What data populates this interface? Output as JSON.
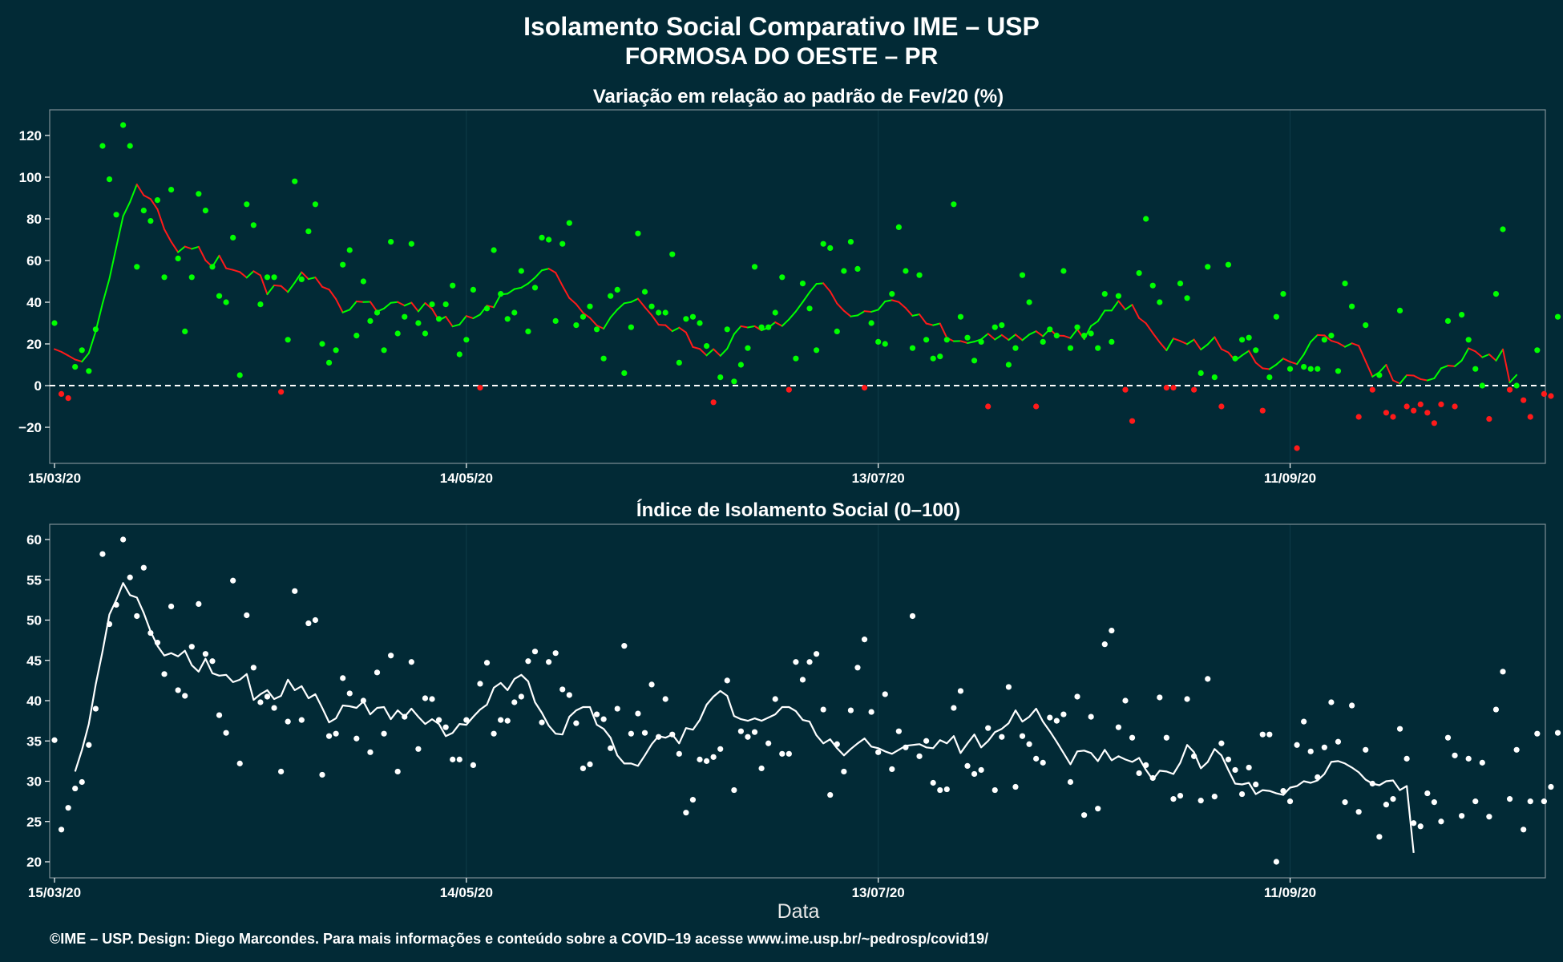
{
  "title_line1": "Isolamento Social Comparativo IME – USP",
  "title_line2": "FORMOSA DO OESTE – PR",
  "caption": "©IME – USP. Design: Diego Marcondes. Para mais informações e conteúdo sobre a COVID–19 acesse www.ime.usp.br/~pedrosp/covid19/",
  "colors": {
    "background": "#022a36",
    "positive": "#00ff00",
    "negative": "#ff1a1a",
    "index": "#ffffff",
    "grid": "#0f3d4a",
    "frame": "#7d8f95"
  },
  "chart_data": [
    {
      "type": "scatter",
      "title": "Variação em relação ao padrão de Fev/20 (%)",
      "xlabel": "",
      "ylabel": "",
      "x_start": "15/03/20",
      "x_end": "20/10/20",
      "xticks": [
        "15/03/20",
        "14/05/20",
        "13/07/20",
        "11/09/20"
      ],
      "yticks": [
        -20,
        0,
        20,
        40,
        60,
        80,
        100,
        120
      ],
      "ylim": [
        -35,
        133
      ],
      "reference_line": 0,
      "points": [
        30,
        -4,
        -6,
        9,
        17,
        7,
        27,
        115,
        99,
        82,
        125,
        115,
        57,
        84,
        79,
        89,
        52,
        94,
        61,
        26,
        52,
        92,
        84,
        57,
        43,
        40,
        71,
        5,
        87,
        77,
        39,
        52,
        52,
        -3,
        22,
        98,
        51,
        74,
        87,
        20,
        11,
        17,
        58,
        65,
        24,
        50,
        31,
        35,
        17,
        69,
        25,
        33,
        68,
        30,
        25,
        39,
        32,
        39,
        48,
        15,
        22,
        46,
        -1,
        37,
        65,
        44,
        32,
        35,
        55,
        26,
        47,
        71,
        70,
        31,
        68,
        78,
        29,
        33,
        38,
        27,
        13,
        43,
        46,
        6,
        28,
        73,
        45,
        38,
        35,
        35,
        63,
        11,
        32,
        33,
        30,
        19,
        -8,
        4,
        27,
        2,
        10,
        18,
        57,
        28,
        28,
        35,
        52,
        -2,
        13,
        49,
        37,
        17,
        68,
        66,
        26,
        55,
        69,
        56,
        -1,
        30,
        21,
        20,
        44,
        76,
        55,
        18,
        53,
        22,
        13,
        14,
        22,
        87,
        33,
        23,
        12,
        21,
        -10,
        28,
        29,
        10,
        18,
        53,
        40,
        -10,
        21,
        27,
        24,
        55,
        18,
        28,
        24,
        25,
        18,
        44,
        21,
        43,
        -2,
        -17,
        54,
        80,
        48,
        40,
        -1,
        -1,
        49,
        42,
        -2,
        6,
        57,
        4,
        -10,
        58,
        13,
        22,
        23,
        17,
        -12,
        4,
        33,
        44,
        8,
        -30,
        9,
        8,
        8,
        22,
        24,
        7,
        49,
        38,
        -15,
        29,
        -2,
        5,
        -13,
        -15,
        36,
        -10,
        -12,
        -9,
        -13,
        -18,
        -9,
        31,
        -10,
        34,
        22,
        8,
        0,
        -16,
        44,
        75,
        -2,
        0,
        -7,
        -15,
        17,
        -4,
        -5,
        33
      ],
      "moving_average": [
        17.5,
        16.2,
        14.4,
        12.5,
        11.5,
        15.6,
        26.0,
        39.4,
        51.3,
        66.4,
        81.3,
        88.1,
        96.5,
        91.3,
        89.5,
        84.6,
        75.0,
        69.0,
        64.0,
        66.7,
        65.6,
        66.6,
        60.1,
        57.0,
        62.4,
        56.3,
        55.5,
        54.5,
        51.8,
        54.9,
        52.9,
        43.8,
        48.1,
        47.8,
        44.9,
        49.4,
        54.4,
        51.1,
        51.9,
        47.4,
        46.1,
        41.5,
        35.1,
        36.4,
        40.4,
        40.1,
        40.2,
        35.5,
        37.0,
        39.7,
        40.1,
        38.4,
        39.8,
        35.6,
        39.6,
        36.8,
        31.3,
        33.1,
        28.4,
        29.3,
        33.4,
        32.3,
        34.1,
        38.4,
        37.6,
        43.7,
        44.1,
        46.3,
        47.0,
        49.0,
        51.8,
        55.3,
        56.1,
        54.2,
        47.9,
        42.0,
        39.1,
        34.9,
        32.5,
        28.9,
        27.3,
        32.7,
        36.5,
        39.5,
        40.1,
        41.7,
        37.6,
        33.8,
        29.2,
        29.0,
        26.1,
        27.8,
        25.5,
        18.5,
        17.6,
        14.5,
        17.5,
        14.3,
        17.7,
        24.7,
        28.5,
        27.9,
        28.5,
        26.5,
        27.8,
        30.4,
        28.6,
        31.8,
        35.6,
        40.1,
        44.8,
        48.8,
        49.1,
        45.2,
        39.4,
        35.9,
        33.2,
        33.7,
        35.7,
        35.4,
        36.4,
        40.4,
        41.0,
        40.1,
        37.2,
        33.5,
        34.2,
        29.8,
        29.0,
        29.8,
        22.9,
        21.3,
        21.4,
        20.4,
        21.1,
        22.2,
        24.9,
        22.1,
        24.3,
        21.9,
        24.5,
        21.8,
        24.5,
        26.1,
        23.7,
        27.1,
        24.0,
        23.9,
        22.8,
        27.0,
        22.3,
        28.6,
        30.9,
        36.0,
        36.0,
        40.6,
        36.5,
        38.8,
        32.4,
        29.9,
        25.2,
        20.8,
        16.9,
        22.6,
        21.4,
        19.9,
        22.1,
        17.3,
        19.8,
        23.3,
        17.5,
        15.9,
        12.0,
        14.5,
        16.7,
        11.0,
        8.3,
        7.9,
        10.1,
        13.0,
        11.4,
        10.3,
        14.9,
        21.0,
        24.3,
        24.1,
        21.5,
        20.5,
        18.6,
        20.3,
        19.1,
        11.7,
        4.3,
        6.4,
        10.0,
        2.5,
        1.0,
        5.0,
        4.8,
        3.1,
        2.5,
        3.5,
        8.3,
        9.6,
        9.3,
        12.0,
        17.9,
        16.4,
        13.6,
        15.0,
        12.0,
        17.4,
        1.5,
        5.1
      ],
      "series": [
        {
          "name": "",
          "color": "#00ff00"
        },
        {
          "name": "",
          "color": "#ff1a1a"
        }
      ]
    },
    {
      "type": "scatter",
      "title": "Índice de Isolamento Social (0–100)",
      "xlabel": "Data",
      "ylabel": "",
      "x_start": "15/03/20",
      "x_end": "20/10/20",
      "xticks": [
        "15/03/20",
        "14/05/20",
        "13/07/20",
        "11/09/20"
      ],
      "yticks": [
        20,
        25,
        30,
        35,
        40,
        45,
        50,
        55,
        60
      ],
      "ylim": [
        18,
        62
      ],
      "points": [
        35.1,
        24.0,
        26.7,
        29.1,
        29.9,
        34.5,
        39.0,
        58.2,
        49.5,
        51.9,
        60.0,
        55.3,
        50.5,
        56.5,
        48.4,
        47.2,
        43.3,
        51.7,
        41.3,
        40.6,
        46.7,
        52.0,
        45.8,
        44.9,
        38.2,
        36.0,
        54.9,
        32.2,
        50.6,
        44.1,
        39.8,
        40.5,
        39.1,
        31.2,
        37.4,
        53.6,
        37.6,
        49.6,
        50.0,
        30.8,
        35.6,
        35.9,
        42.8,
        40.9,
        35.3,
        40.0,
        33.6,
        43.5,
        35.9,
        45.6,
        31.2,
        38.0,
        44.8,
        34.0,
        40.3,
        40.2,
        37.6,
        36.7,
        32.7,
        32.7,
        37.6,
        32.0,
        42.1,
        44.7,
        35.9,
        37.6,
        37.5,
        39.8,
        40.5,
        44.9,
        46.1,
        37.3,
        44.8,
        45.9,
        41.4,
        40.7,
        37.2,
        31.6,
        32.1,
        38.3,
        37.7,
        34.1,
        39.0,
        46.8,
        35.9,
        38.4,
        36.0,
        42.0,
        35.5,
        40.2,
        35.8,
        33.4,
        26.1,
        27.7,
        32.7,
        32.5,
        33.0,
        34.0,
        42.5,
        28.9,
        36.2,
        35.5,
        36.1,
        31.6,
        34.7,
        40.2,
        33.4,
        33.4,
        44.8,
        42.6,
        44.8,
        45.8,
        38.9,
        28.3,
        34.6,
        31.2,
        38.8,
        44.1,
        47.6,
        38.6,
        33.6,
        40.8,
        31.5,
        36.2,
        34.2,
        50.5,
        33.1,
        35.0,
        29.8,
        28.9,
        29.0,
        39.1,
        41.2,
        31.9,
        30.9,
        31.4,
        36.6,
        28.9,
        35.5,
        41.7,
        29.3,
        35.6,
        34.6,
        32.8,
        32.3,
        37.9,
        37.5,
        38.3,
        29.9,
        40.5,
        25.8,
        38.0,
        26.6,
        47.0,
        48.7,
        36.7,
        40.0,
        35.4,
        31.0,
        32.0,
        30.4,
        40.4,
        35.4,
        27.8,
        28.2,
        40.2,
        33.1,
        27.6,
        42.7,
        28.1,
        34.7,
        32.7,
        31.4,
        28.4,
        31.7,
        29.6,
        35.8,
        35.8,
        20.0,
        28.8,
        27.5,
        34.5,
        37.4,
        33.7,
        30.5,
        34.2,
        39.8,
        34.9,
        27.4,
        39.4,
        26.2,
        33.9,
        29.7,
        23.1,
        27.1,
        27.8,
        36.5,
        32.8,
        24.8,
        24.4,
        28.5,
        27.4,
        25.0,
        35.4,
        33.2,
        25.7,
        32.8,
        27.5,
        32.3,
        25.6,
        38.9,
        43.6,
        27.8,
        33.9,
        24.0,
        27.5,
        35.9,
        27.5,
        29.3,
        36.0
      ],
      "moving_average": [
        null,
        null,
        null,
        31.2,
        33.9,
        37.1,
        42.0,
        46.1,
        50.7,
        52.5,
        54.6,
        53.1,
        52.8,
        50.9,
        48.6,
        46.8,
        45.6,
        45.9,
        45.5,
        46.2,
        44.4,
        43.6,
        45.2,
        43.4,
        43.1,
        43.2,
        42.3,
        42.6,
        43.3,
        40.1,
        40.8,
        41.3,
        40.2,
        40.6,
        42.6,
        41.3,
        41.8,
        40.3,
        40.8,
        39.1,
        37.3,
        37.8,
        39.4,
        39.3,
        39.1,
        39.9,
        38.3,
        39.1,
        39.2,
        37.7,
        38.8,
        38.0,
        39.0,
        38.0,
        37.1,
        37.7,
        37.1,
        35.6,
        36.0,
        37.1,
        37.0,
        38.0,
        38.9,
        39.5,
        41.6,
        42.2,
        41.3,
        42.7,
        43.2,
        42.4,
        39.8,
        38.5,
        36.9,
        35.9,
        35.8,
        38.0,
        38.8,
        39.2,
        39.2,
        37.0,
        36.5,
        35.4,
        33.2,
        32.2,
        32.2,
        31.9,
        33.2,
        34.6,
        35.6,
        35.4,
        35.8,
        34.7,
        36.6,
        36.4,
        37.6,
        39.5,
        40.5,
        41.2,
        40.6,
        38.1,
        37.7,
        37.5,
        37.8,
        37.5,
        37.9,
        38.3,
        39.2,
        39.2,
        38.7,
        37.6,
        37.4,
        35.7,
        34.7,
        35.2,
        34.1,
        33.2,
        34.0,
        34.7,
        35.3,
        34.3,
        34.1,
        33.7,
        33.4,
        33.9,
        34.4,
        34.5,
        34.6,
        34.2,
        34.1,
        35.1,
        34.7,
        35.6,
        33.5,
        34.7,
        35.8,
        34.2,
        35.0,
        36.1,
        36.5,
        37.2,
        38.8,
        37.4,
        38.0,
        39.0,
        37.4,
        36.2,
        34.9,
        33.5,
        32.1,
        33.7,
        33.8,
        33.5,
        32.5,
        33.9,
        32.6,
        33.1,
        32.7,
        32.4,
        32.9,
        31.4,
        30.2,
        31.3,
        31.2,
        30.9,
        32.3,
        34.5,
        33.6,
        31.6,
        32.4,
        34.0,
        33.2,
        31.4,
        29.7,
        29.6,
        29.8,
        28.4,
        28.9,
        28.8,
        28.5,
        28.3,
        29.2,
        29.4,
        30.0,
        29.8,
        30.1,
        30.9,
        32.4,
        32.5,
        32.2,
        31.7,
        31.1,
        30.2,
        29.7,
        29.5,
        30.0,
        30.1,
        28.9,
        29.4,
        21.1
      ]
    }
  ]
}
